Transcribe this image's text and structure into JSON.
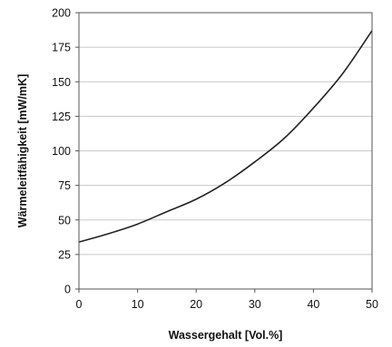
{
  "chart_data": {
    "type": "line",
    "title": "",
    "xlabel": "Wassergehalt [Vol.%]",
    "ylabel": "Wärmeleitfähigkeit [mW/mK]",
    "xlim": [
      0,
      50
    ],
    "ylim": [
      0,
      200
    ],
    "x_ticks": [
      0,
      10,
      20,
      30,
      40,
      50
    ],
    "y_ticks": [
      0,
      25,
      50,
      75,
      100,
      125,
      150,
      175,
      200
    ],
    "grid": "horizontal",
    "legend": "none",
    "colors": {
      "line": "#222222",
      "grid": "#c8c8c8",
      "axis": "#555555"
    },
    "series": [
      {
        "x": [
          0,
          5,
          10,
          15,
          20,
          25,
          30,
          35,
          40,
          45,
          50
        ],
        "values": [
          34,
          40,
          47,
          56,
          65,
          77,
          92,
          109,
          131,
          156,
          187
        ]
      }
    ]
  }
}
